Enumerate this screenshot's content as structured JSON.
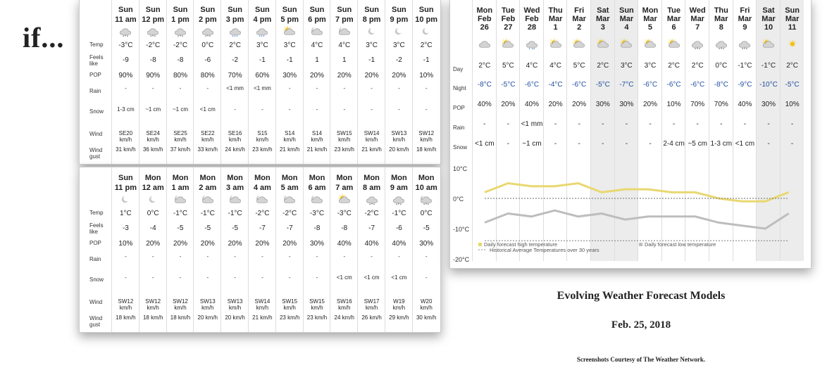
{
  "if_text": "if...",
  "hourly_top": {
    "row_labels": {
      "temp": "Temp",
      "feels": "Feels like",
      "pop": "POP",
      "rain": "Rain",
      "snow": "Snow",
      "wind": "Wind",
      "gust": "Wind gust"
    },
    "columns": [
      {
        "day": "Sun",
        "time": "11 am",
        "icon": "snow-icon",
        "temp": "-3°C",
        "feels": "-9",
        "pop": "90%",
        "rain": "-",
        "snow": "1-3 cm",
        "wind": "SE20 km/h",
        "gust": "31 km/h"
      },
      {
        "day": "Sun",
        "time": "12 pm",
        "icon": "snow-icon",
        "temp": "-2°C",
        "feels": "-8",
        "pop": "90%",
        "rain": "-",
        "snow": "~1 cm",
        "wind": "SE24 km/h",
        "gust": "36 km/h"
      },
      {
        "day": "Sun",
        "time": "1 pm",
        "icon": "snow-icon",
        "temp": "-2°C",
        "feels": "-8",
        "pop": "80%",
        "rain": "-",
        "snow": "~1 cm",
        "wind": "SE25 km/h",
        "gust": "37 km/h"
      },
      {
        "day": "Sun",
        "time": "2 pm",
        "icon": "snow-icon",
        "temp": "0°C",
        "feels": "-6",
        "pop": "80%",
        "rain": "-",
        "snow": "<1 cm",
        "wind": "SE22 km/h",
        "gust": "33 km/h"
      },
      {
        "day": "Sun",
        "time": "3 pm",
        "icon": "rain-icon",
        "temp": "2°C",
        "feels": "-2",
        "pop": "70%",
        "rain": "<1 mm",
        "snow": "-",
        "wind": "SE16 km/h",
        "gust": "24 km/h"
      },
      {
        "day": "Sun",
        "time": "4 pm",
        "icon": "rain-icon",
        "temp": "3°C",
        "feels": "-1",
        "pop": "60%",
        "rain": "<1 mm",
        "snow": "-",
        "wind": "S15 km/h",
        "gust": "23 km/h"
      },
      {
        "day": "Sun",
        "time": "5 pm",
        "icon": "sun-cloud-icon",
        "temp": "3°C",
        "feels": "-1",
        "pop": "30%",
        "rain": "-",
        "snow": "-",
        "wind": "S14 km/h",
        "gust": "21 km/h"
      },
      {
        "day": "Sun",
        "time": "6 pm",
        "icon": "moon-cloud-icon",
        "temp": "4°C",
        "feels": "1",
        "pop": "20%",
        "rain": "-",
        "snow": "-",
        "wind": "S14 km/h",
        "gust": "21 km/h"
      },
      {
        "day": "Sun",
        "time": "7 pm",
        "icon": "moon-cloud-icon",
        "temp": "4°C",
        "feels": "1",
        "pop": "20%",
        "rain": "-",
        "snow": "-",
        "wind": "SW15 km/h",
        "gust": "23 km/h"
      },
      {
        "day": "Sun",
        "time": "8 pm",
        "icon": "moon-icon",
        "temp": "3°C",
        "feels": "-1",
        "pop": "20%",
        "rain": "-",
        "snow": "-",
        "wind": "SW14 km/h",
        "gust": "21 km/h"
      },
      {
        "day": "Sun",
        "time": "9 pm",
        "icon": "moon-icon",
        "temp": "3°C",
        "feels": "-2",
        "pop": "20%",
        "rain": "-",
        "snow": "-",
        "wind": "SW13 km/h",
        "gust": "20 km/h"
      },
      {
        "day": "Sun",
        "time": "10 pm",
        "icon": "moon-icon",
        "temp": "2°C",
        "feels": "-1",
        "pop": "10%",
        "rain": "-",
        "snow": "-",
        "wind": "SW12 km/h",
        "gust": "18 km/h"
      }
    ]
  },
  "hourly_bottom": {
    "row_labels": {
      "temp": "Temp",
      "feels": "Feels like",
      "pop": "POP",
      "rain": "Rain",
      "snow": "Snow",
      "wind": "Wind",
      "gust": "Wind gust"
    },
    "columns": [
      {
        "day": "Sun",
        "time": "11 pm",
        "icon": "moon-icon",
        "temp": "1°C",
        "feels": "-3",
        "pop": "10%",
        "rain": "-",
        "snow": "-",
        "wind": "SW12 km/h",
        "gust": "18 km/h"
      },
      {
        "day": "Mon",
        "time": "12 am",
        "icon": "moon-icon",
        "temp": "0°C",
        "feels": "-4",
        "pop": "20%",
        "rain": "-",
        "snow": "-",
        "wind": "SW12 km/h",
        "gust": "18 km/h"
      },
      {
        "day": "Mon",
        "time": "1 am",
        "icon": "moon-cloud-icon",
        "temp": "-1°C",
        "feels": "-5",
        "pop": "20%",
        "rain": "-",
        "snow": "-",
        "wind": "SW12 km/h",
        "gust": "18 km/h"
      },
      {
        "day": "Mon",
        "time": "2 am",
        "icon": "moon-cloud-icon",
        "temp": "-1°C",
        "feels": "-5",
        "pop": "20%",
        "rain": "-",
        "snow": "-",
        "wind": "SW13 km/h",
        "gust": "20 km/h"
      },
      {
        "day": "Mon",
        "time": "3 am",
        "icon": "moon-cloud-icon",
        "temp": "-1°C",
        "feels": "-5",
        "pop": "20%",
        "rain": "-",
        "snow": "-",
        "wind": "SW13 km/h",
        "gust": "20 km/h"
      },
      {
        "day": "Mon",
        "time": "4 am",
        "icon": "moon-cloud-icon",
        "temp": "-2°C",
        "feels": "-7",
        "pop": "20%",
        "rain": "-",
        "snow": "-",
        "wind": "SW14 km/h",
        "gust": "21 km/h"
      },
      {
        "day": "Mon",
        "time": "5 am",
        "icon": "moon-cloud-icon",
        "temp": "-2°C",
        "feels": "-7",
        "pop": "20%",
        "rain": "-",
        "snow": "-",
        "wind": "SW15 km/h",
        "gust": "23 km/h"
      },
      {
        "day": "Mon",
        "time": "6 am",
        "icon": "moon-cloud-icon",
        "temp": "-3°C",
        "feels": "-8",
        "pop": "30%",
        "rain": "-",
        "snow": "-",
        "wind": "SW15 km/h",
        "gust": "23 km/h"
      },
      {
        "day": "Mon",
        "time": "7 am",
        "icon": "sun-cloud-icon",
        "temp": "-3°C",
        "feels": "-8",
        "pop": "40%",
        "rain": "-",
        "snow": "<1 cm",
        "wind": "SW16 km/h",
        "gust": "24 km/h"
      },
      {
        "day": "Mon",
        "time": "8 am",
        "icon": "snow-icon",
        "temp": "-2°C",
        "feels": "-7",
        "pop": "40%",
        "rain": "-",
        "snow": "<1 cm",
        "wind": "SW17 km/h",
        "gust": "26 km/h"
      },
      {
        "day": "Mon",
        "time": "9 am",
        "icon": "snow-icon",
        "temp": "-1°C",
        "feels": "-6",
        "pop": "40%",
        "rain": "-",
        "snow": "<1 cm",
        "wind": "W19 km/h",
        "gust": "29 km/h"
      },
      {
        "day": "Mon",
        "time": "10 am",
        "icon": "snow-cloud-icon",
        "temp": "0°C",
        "feels": "-5",
        "pop": "30%",
        "rain": "-",
        "snow": "-",
        "wind": "W20 km/h",
        "gust": "30 km/h"
      }
    ]
  },
  "daily": {
    "row_labels": {
      "day": "Day",
      "night": "Night",
      "pop": "POP",
      "rain": "Rain",
      "snow": "Snow"
    },
    "columns": [
      {
        "dow": "Mon",
        "md": "Feb",
        "dnum": "26",
        "weekend": false,
        "icon": "cloud-icon",
        "day": "2°C",
        "night": "-8°C",
        "pop": "40%",
        "rain": "-",
        "snow": "<1 cm"
      },
      {
        "dow": "Tue",
        "md": "Feb",
        "dnum": "27",
        "weekend": false,
        "icon": "sun-cloud-icon",
        "day": "5°C",
        "night": "-5°C",
        "pop": "20%",
        "rain": "-",
        "snow": "-"
      },
      {
        "dow": "Wed",
        "md": "Feb",
        "dnum": "28",
        "weekend": false,
        "icon": "rain-snow-icon",
        "day": "4°C",
        "night": "-6°C",
        "pop": "40%",
        "rain": "<1 mm",
        "snow": "~1 cm"
      },
      {
        "dow": "Thu",
        "md": "Mar",
        "dnum": "1",
        "weekend": false,
        "icon": "sun-cloud-icon",
        "day": "4°C",
        "night": "-4°C",
        "pop": "20%",
        "rain": "-",
        "snow": "-"
      },
      {
        "dow": "Fri",
        "md": "Mar",
        "dnum": "2",
        "weekend": false,
        "icon": "sun-cloud-icon",
        "day": "5°C",
        "night": "-6°C",
        "pop": "20%",
        "rain": "-",
        "snow": "-"
      },
      {
        "dow": "Sat",
        "md": "Mar",
        "dnum": "3",
        "weekend": true,
        "icon": "sun-cloud-icon",
        "day": "2°C",
        "night": "-5°C",
        "pop": "30%",
        "rain": "-",
        "snow": "-"
      },
      {
        "dow": "Sun",
        "md": "Mar",
        "dnum": "4",
        "weekend": true,
        "icon": "sun-cloud-icon",
        "day": "3°C",
        "night": "-7°C",
        "pop": "30%",
        "rain": "-",
        "snow": "-"
      },
      {
        "dow": "Mon",
        "md": "Mar",
        "dnum": "5",
        "weekend": false,
        "icon": "sun-cloud-icon",
        "day": "3°C",
        "night": "-6°C",
        "pop": "20%",
        "rain": "-",
        "snow": "-"
      },
      {
        "dow": "Tue",
        "md": "Mar",
        "dnum": "6",
        "weekend": false,
        "icon": "sun-cloud-icon",
        "day": "2°C",
        "night": "-6°C",
        "pop": "10%",
        "rain": "-",
        "snow": "2-4 cm"
      },
      {
        "dow": "Wed",
        "md": "Mar",
        "dnum": "7",
        "weekend": false,
        "icon": "snow-icon",
        "day": "2°C",
        "night": "-6°C",
        "pop": "70%",
        "rain": "-",
        "snow": "~5 cm"
      },
      {
        "dow": "Thu",
        "md": "Mar",
        "dnum": "8",
        "weekend": false,
        "icon": "snow-icon",
        "day": "0°C",
        "night": "-8°C",
        "pop": "70%",
        "rain": "-",
        "snow": "1-3 cm"
      },
      {
        "dow": "Fri",
        "md": "Mar",
        "dnum": "9",
        "weekend": false,
        "icon": "snow-icon",
        "day": "-1°C",
        "night": "-9°C",
        "pop": "40%",
        "rain": "-",
        "snow": "<1 cm"
      },
      {
        "dow": "Sat",
        "md": "Mar",
        "dnum": "10",
        "weekend": true,
        "icon": "sun-cloud-icon",
        "day": "-1°C",
        "night": "-10°C",
        "pop": "30%",
        "rain": "-",
        "snow": "-"
      },
      {
        "dow": "Sun",
        "md": "Mar",
        "dnum": "11",
        "weekend": true,
        "icon": "sun-icon",
        "day": "2°C",
        "night": "-5°C",
        "pop": "10%",
        "rain": "-",
        "snow": "-"
      }
    ]
  },
  "chart_data": {
    "type": "line",
    "x": [
      "Mon Feb 26",
      "Tue Feb 27",
      "Wed Feb 28",
      "Thu Mar 1",
      "Fri Mar 2",
      "Sat Mar 3",
      "Sun Mar 4",
      "Mon Mar 5",
      "Tue Mar 6",
      "Wed Mar 7",
      "Thu Mar 8",
      "Fri Mar 9",
      "Sat Mar 10",
      "Sun Mar 11"
    ],
    "series": [
      {
        "name": "Daily forecast high temperature",
        "color": "#e8d870",
        "values": [
          2,
          5,
          4,
          4,
          5,
          2,
          3,
          3,
          2,
          2,
          0,
          -1,
          -1,
          2
        ]
      },
      {
        "name": "Daily forecast low temperature",
        "color": "#bdbdbd",
        "values": [
          -8,
          -5,
          -6,
          -4,
          -6,
          -5,
          -7,
          -6,
          -6,
          -6,
          -8,
          -9,
          -10,
          -5
        ]
      },
      {
        "name": "Historical Average Temperatures over 30 years",
        "color": "#888888",
        "style": "dotted",
        "values": [
          0,
          0,
          0,
          0,
          0,
          0,
          0,
          0,
          0,
          0,
          0,
          0,
          0,
          0
        ]
      },
      {
        "name": "",
        "color": "#888888",
        "style": "dotted",
        "values": [
          -14,
          -14,
          -14,
          -14,
          -14,
          -14,
          -14,
          -14,
          -14,
          -14,
          -14,
          -14,
          -14,
          -14
        ]
      }
    ],
    "yticks": [
      "10°C",
      "0°C",
      "-10°C",
      "-20°C"
    ],
    "ylim": [
      -20,
      10
    ],
    "legend": [
      "Daily forecast high temperature",
      "Daily forecast low temperature",
      "Historical Average Temperatures over 30 years"
    ],
    "legend_placement": "bottom",
    "grid": false
  },
  "captions": {
    "title": "Evolving Weather Forecast Models",
    "date": "Feb. 25, 2018",
    "credit": "Screenshots Courtesy of The Weather Network."
  }
}
